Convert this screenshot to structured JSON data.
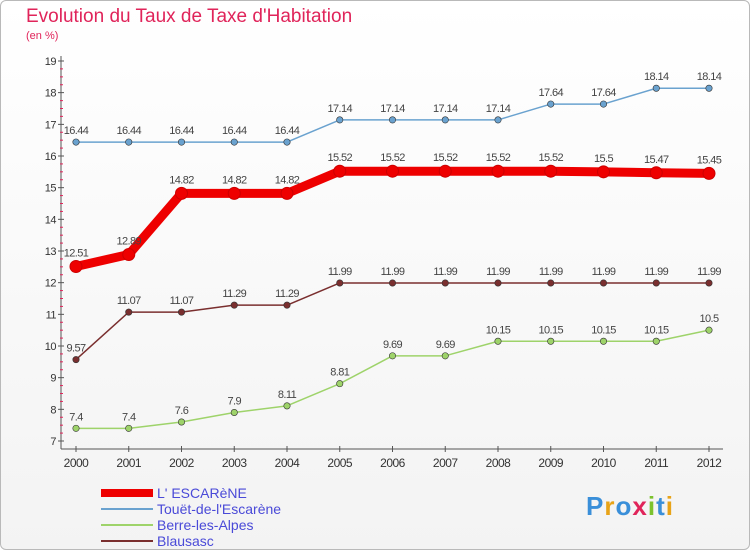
{
  "title": "Evolution du Taux de Taxe d'Habitation",
  "subtitle": "(en %)",
  "logo": {
    "text": "Proxiti",
    "letters": [
      "P",
      "r",
      "o",
      "x",
      "i",
      "t",
      "i"
    ],
    "colors": [
      "#3a8fd9",
      "#e8a317",
      "#3a8fd9",
      "#e0245a",
      "#7cc22e",
      "#3a8fd9",
      "#e8a317"
    ]
  },
  "chart_data": {
    "type": "line",
    "x": [
      "2000",
      "2001",
      "2002",
      "2003",
      "2004",
      "2005",
      "2006",
      "2007",
      "2008",
      "2009",
      "2010",
      "2011",
      "2012"
    ],
    "ylim": [
      7,
      19
    ],
    "yticks": [
      "7",
      "8",
      "9",
      "10",
      "11",
      "12",
      "13",
      "14",
      "15",
      "16",
      "17",
      "18",
      "19"
    ],
    "grid": false,
    "legend_position": "bottom-left",
    "series": [
      {
        "name": "L' ESCARèNE",
        "color": "#ee0000",
        "thick": true,
        "values": [
          12.51,
          12.89,
          14.82,
          14.82,
          14.82,
          15.52,
          15.52,
          15.52,
          15.52,
          15.52,
          15.5,
          15.47,
          15.45
        ],
        "labels": [
          "12.51",
          "12.89",
          "14.82",
          "14.82",
          "14.82",
          "15.52",
          "15.52",
          "15.52",
          "15.52",
          "15.52",
          "15.5",
          "15.47",
          "15.45"
        ]
      },
      {
        "name": "Touët-de-l'Escarène",
        "color": "#6aa2cf",
        "thick": false,
        "values": [
          16.44,
          16.44,
          16.44,
          16.44,
          16.44,
          17.14,
          17.14,
          17.14,
          17.14,
          17.64,
          17.64,
          18.14,
          18.14
        ],
        "labels": [
          "16.44",
          "16.44",
          "16.44",
          "16.44",
          "16.44",
          "17.14",
          "17.14",
          "17.14",
          "17.14",
          "17.64",
          "17.64",
          "18.14",
          "18.14"
        ]
      },
      {
        "name": "Berre-les-Alpes",
        "color": "#9ed36a",
        "thick": false,
        "values": [
          7.4,
          7.4,
          7.6,
          7.9,
          8.11,
          8.81,
          9.69,
          9.69,
          10.15,
          10.15,
          10.15,
          10.15,
          10.5
        ],
        "labels": [
          "7.4",
          "7.4",
          "7.6",
          "7.9",
          "8.11",
          "8.81",
          "9.69",
          "9.69",
          "10.15",
          "10.15",
          "10.15",
          "10.15",
          "10.5"
        ]
      },
      {
        "name": "Blausasc",
        "color": "#7a2f2f",
        "thick": false,
        "values": [
          9.57,
          11.07,
          11.07,
          11.29,
          11.29,
          11.99,
          11.99,
          11.99,
          11.99,
          11.99,
          11.99,
          11.99,
          11.99
        ],
        "labels": [
          "9.57",
          "11.07",
          "11.07",
          "11.29",
          "11.29",
          "11.99",
          "11.99",
          "11.99",
          "11.99",
          "11.99",
          "11.99",
          "11.99",
          "11.99"
        ]
      }
    ]
  }
}
